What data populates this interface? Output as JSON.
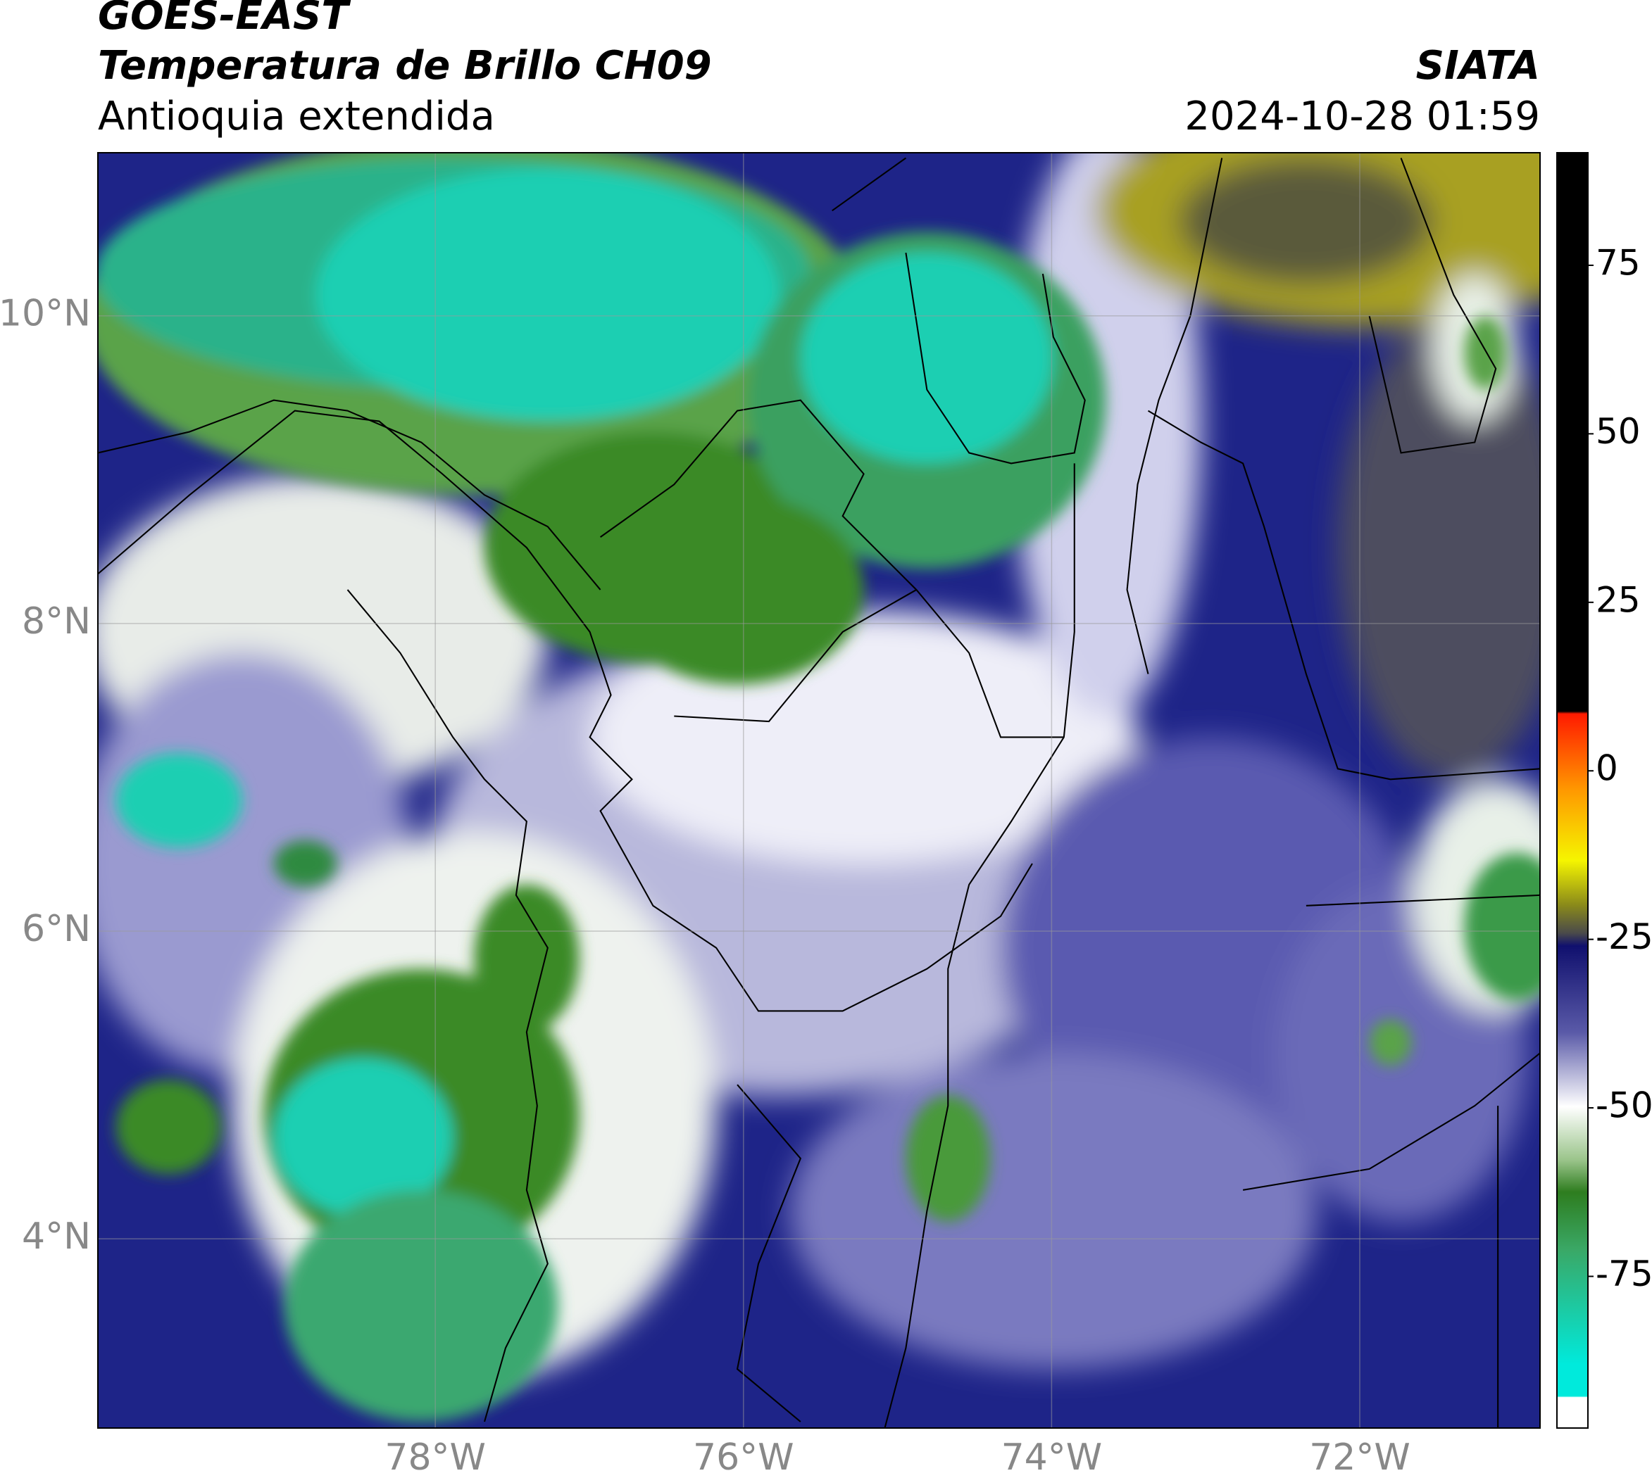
{
  "header": {
    "title": "GOES-EAST",
    "subtitle": "Temperatura de Brillo CH09",
    "region": "Antioquia extendida",
    "source": "SIATA",
    "datetime": "2024-10-28 01:59"
  },
  "chart_data": {
    "type": "map",
    "xlim": [
      -80.19,
      -70.83
    ],
    "ylim": [
      2.77,
      11.06
    ],
    "xticks": [
      {
        "value": -78,
        "label": "78°W"
      },
      {
        "value": -76,
        "label": "76°W"
      },
      {
        "value": -74,
        "label": "74°W"
      },
      {
        "value": -72,
        "label": "72°W"
      }
    ],
    "yticks": [
      {
        "value": 4,
        "label": "4°N"
      },
      {
        "value": 6,
        "label": "6°N"
      },
      {
        "value": 8,
        "label": "8°N"
      },
      {
        "value": 10,
        "label": "10°N"
      }
    ],
    "grid": true,
    "colorbar": {
      "lim": [
        -97.5,
        91.7
      ],
      "ticks": [
        75,
        50,
        25,
        0,
        -25,
        -50,
        -75
      ]
    }
  }
}
